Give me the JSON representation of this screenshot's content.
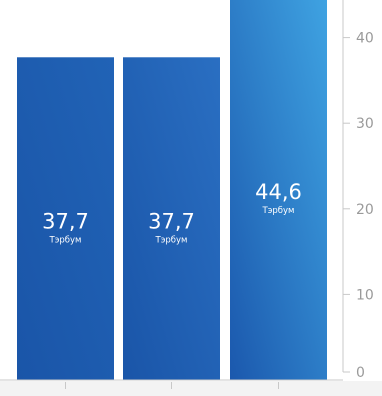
{
  "chart_data": {
    "type": "bar",
    "categories": [
      "",
      "",
      ""
    ],
    "values": [
      37.7,
      37.7,
      44.6
    ],
    "value_labels": [
      "37,7",
      "37,7",
      "44,6"
    ],
    "unit_label": "Тэрбум",
    "title": "",
    "xlabel": "",
    "ylabel": "",
    "ylim": [
      0,
      44.6
    ],
    "yticks": [
      0,
      10,
      20,
      30,
      40
    ],
    "ytick_labels": [
      "0",
      "10",
      "20",
      "30",
      "40"
    ],
    "grid": false,
    "y_axis_side": "right"
  },
  "colors": {
    "bar_dark": "#1a55a8",
    "bar_mid": "#2671c6",
    "bar_light": "#3d9ddf",
    "axis": "#c8c8c8",
    "tick_text": "#9a9a9a",
    "label_text": "#ffffff",
    "footer_band": "#f3f3f3"
  }
}
